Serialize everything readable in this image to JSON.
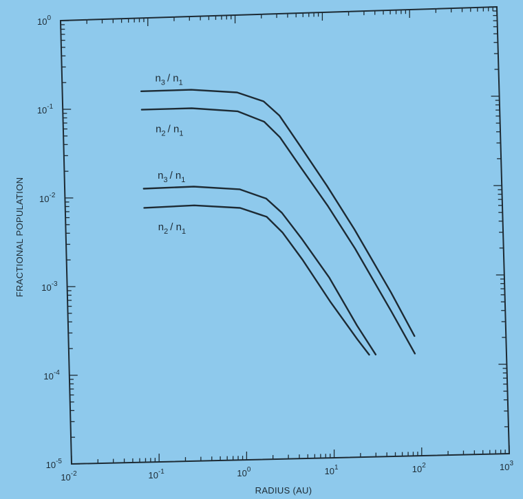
{
  "chart_data": {
    "type": "line",
    "title": "",
    "xlabel": "RADIUS  (AU)",
    "ylabel": "FRACTIONAL POPULATION",
    "x_scale": "log",
    "y_scale": "log",
    "xlim": [
      0.01,
      1000
    ],
    "ylim": [
      1e-05,
      1
    ],
    "grid": false,
    "x_ticks": [
      {
        "base": "10",
        "exp": "-2"
      },
      {
        "base": "10",
        "exp": "-1"
      },
      {
        "base": "10",
        "exp": "0"
      },
      {
        "base": "10",
        "exp": "1"
      },
      {
        "base": "10",
        "exp": "2"
      },
      {
        "base": "10",
        "exp": "3"
      }
    ],
    "y_ticks": [
      {
        "base": "10",
        "exp": "0"
      },
      {
        "base": "10",
        "exp": "-1"
      },
      {
        "base": "10",
        "exp": "-2"
      },
      {
        "base": "10",
        "exp": "-3"
      },
      {
        "base": "10",
        "exp": "-4"
      },
      {
        "base": "10",
        "exp": "-5"
      }
    ],
    "series": [
      {
        "label_main": "n",
        "label_sub1": "3",
        "label_mid": "/ n",
        "label_sub2": "1",
        "x": [
          0.08,
          0.3,
          1.0,
          2.0,
          3.0,
          5.0,
          10,
          20,
          50,
          90
        ],
        "y": [
          0.15,
          0.15,
          0.135,
          0.105,
          0.072,
          0.033,
          0.0113,
          0.0036,
          0.00069,
          0.00022
        ]
      },
      {
        "label_main": "n",
        "label_sub1": "2",
        "label_mid": "/ n",
        "label_sub2": "1",
        "x": [
          0.08,
          0.3,
          1.0,
          2.0,
          3.0,
          5.0,
          10,
          20,
          50,
          90
        ],
        "y": [
          0.093,
          0.093,
          0.083,
          0.062,
          0.041,
          0.019,
          0.0068,
          0.0022,
          0.00042,
          0.00014
        ]
      },
      {
        "label_main": "n",
        "label_sub1": "3",
        "label_mid": "/ n",
        "label_sub2": "1",
        "x": [
          0.08,
          0.3,
          1.0,
          2.0,
          3.0,
          5.0,
          10,
          20,
          32
        ],
        "y": [
          0.012,
          0.0122,
          0.011,
          0.0085,
          0.0058,
          0.0029,
          0.00105,
          0.0003,
          0.00014
        ]
      },
      {
        "label_main": "n",
        "label_sub1": "2",
        "label_mid": "/ n",
        "label_sub2": "1",
        "x": [
          0.08,
          0.3,
          1.0,
          2.0,
          3.0,
          5.0,
          10,
          20,
          27
        ],
        "y": [
          0.0073,
          0.0075,
          0.0068,
          0.0053,
          0.0035,
          0.0017,
          0.00057,
          0.00021,
          0.00014
        ]
      }
    ]
  }
}
